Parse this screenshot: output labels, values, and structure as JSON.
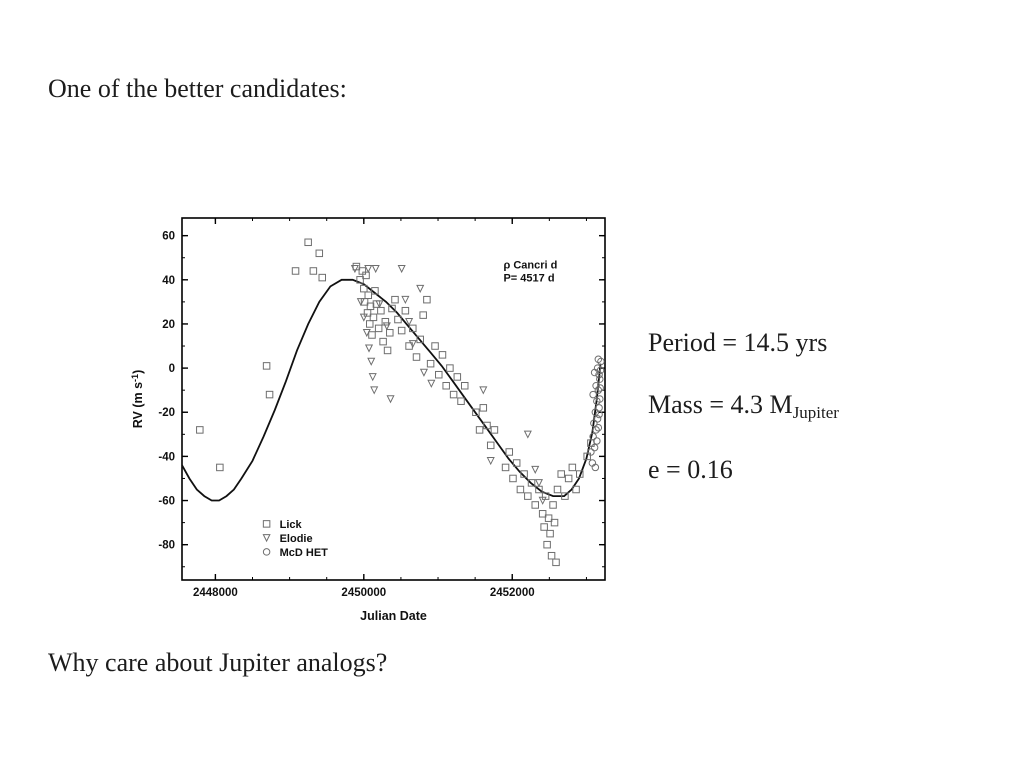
{
  "slide": {
    "title": "One of the better candidates:",
    "question": "Why care about Jupiter analogs?",
    "info": {
      "period": "Period = 14.5 yrs",
      "mass_main": "Mass = 4.3 M",
      "mass_sub": "Jupiter",
      "eccentricity": "e = 0.16"
    }
  },
  "chart_data": {
    "type": "scatter",
    "annotation": [
      "ρ  Cancri d",
      "P= 4517 d"
    ],
    "xlabel": "Julian Date",
    "ylabel_prefix": "RV (m s",
    "ylabel_sup": "-1",
    "ylabel_suffix": ")",
    "xlim": [
      2447550,
      2453250
    ],
    "ylim": [
      -96,
      68
    ],
    "xticks": [
      2448000,
      2450000,
      2452000
    ],
    "x_minor_step": 500,
    "yticks": [
      -80,
      -60,
      -40,
      -20,
      0,
      20,
      40,
      60
    ],
    "y_minor_step": 10,
    "colors": {
      "marker": "#6e6e6e",
      "curve": "#111111",
      "axis": "#000000",
      "text": "#111111"
    },
    "curve": [
      [
        2447550,
        -44
      ],
      [
        2447650,
        -50
      ],
      [
        2447750,
        -55
      ],
      [
        2447850,
        -58
      ],
      [
        2447950,
        -60
      ],
      [
        2448050,
        -60
      ],
      [
        2448150,
        -58
      ],
      [
        2448250,
        -55
      ],
      [
        2448350,
        -50
      ],
      [
        2448500,
        -42
      ],
      [
        2448650,
        -31
      ],
      [
        2448800,
        -19
      ],
      [
        2448950,
        -6
      ],
      [
        2449100,
        8
      ],
      [
        2449250,
        20
      ],
      [
        2449400,
        30
      ],
      [
        2449550,
        37
      ],
      [
        2449700,
        40
      ],
      [
        2449850,
        40
      ],
      [
        2450000,
        38
      ],
      [
        2450150,
        34
      ],
      [
        2450300,
        30
      ],
      [
        2450450,
        25
      ],
      [
        2450600,
        19
      ],
      [
        2450750,
        13
      ],
      [
        2450900,
        7
      ],
      [
        2451050,
        1
      ],
      [
        2451200,
        -6
      ],
      [
        2451350,
        -13
      ],
      [
        2451500,
        -20
      ],
      [
        2451650,
        -27
      ],
      [
        2451800,
        -34
      ],
      [
        2451950,
        -41
      ],
      [
        2452100,
        -47
      ],
      [
        2452250,
        -52
      ],
      [
        2452400,
        -56
      ],
      [
        2452550,
        -58
      ],
      [
        2452700,
        -58
      ],
      [
        2452800,
        -55
      ],
      [
        2452900,
        -50
      ],
      [
        2453000,
        -41
      ],
      [
        2453080,
        -29
      ],
      [
        2453140,
        -14
      ],
      [
        2453190,
        2
      ]
    ],
    "series": [
      {
        "name": "Lick",
        "marker": "square",
        "points": [
          [
            2447790,
            -28
          ],
          [
            2448060,
            -45
          ],
          [
            2448690,
            1
          ],
          [
            2448730,
            -12
          ],
          [
            2449080,
            44
          ],
          [
            2449250,
            57
          ],
          [
            2449320,
            44
          ],
          [
            2449400,
            52
          ],
          [
            2449440,
            41
          ],
          [
            2449900,
            46
          ],
          [
            2449950,
            40
          ],
          [
            2449980,
            44
          ],
          [
            2450000,
            36
          ],
          [
            2450010,
            30
          ],
          [
            2450030,
            42
          ],
          [
            2450050,
            25
          ],
          [
            2450060,
            33
          ],
          [
            2450080,
            20
          ],
          [
            2450090,
            28
          ],
          [
            2450110,
            15
          ],
          [
            2450130,
            23
          ],
          [
            2450150,
            35
          ],
          [
            2450170,
            29
          ],
          [
            2450200,
            18
          ],
          [
            2450230,
            26
          ],
          [
            2450260,
            12
          ],
          [
            2450290,
            21
          ],
          [
            2450320,
            8
          ],
          [
            2450350,
            16
          ],
          [
            2450380,
            27
          ],
          [
            2450420,
            31
          ],
          [
            2450460,
            22
          ],
          [
            2450510,
            17
          ],
          [
            2450560,
            26
          ],
          [
            2450610,
            10
          ],
          [
            2450660,
            18
          ],
          [
            2450710,
            5
          ],
          [
            2450760,
            13
          ],
          [
            2450800,
            24
          ],
          [
            2450850,
            31
          ],
          [
            2450900,
            2
          ],
          [
            2450960,
            10
          ],
          [
            2451010,
            -3
          ],
          [
            2451060,
            6
          ],
          [
            2451110,
            -8
          ],
          [
            2451160,
            0
          ],
          [
            2451210,
            -12
          ],
          [
            2451260,
            -4
          ],
          [
            2451310,
            -15
          ],
          [
            2451360,
            -8
          ],
          [
            2451510,
            -20
          ],
          [
            2451560,
            -28
          ],
          [
            2451610,
            -18
          ],
          [
            2451660,
            -26
          ],
          [
            2451710,
            -35
          ],
          [
            2451760,
            -28
          ],
          [
            2451910,
            -45
          ],
          [
            2451960,
            -38
          ],
          [
            2452010,
            -50
          ],
          [
            2452060,
            -43
          ],
          [
            2452110,
            -55
          ],
          [
            2452160,
            -48
          ],
          [
            2452210,
            -58
          ],
          [
            2452260,
            -52
          ],
          [
            2452310,
            -62
          ],
          [
            2452360,
            -55
          ],
          [
            2452410,
            -66
          ],
          [
            2452430,
            -72
          ],
          [
            2452450,
            -58
          ],
          [
            2452470,
            -80
          ],
          [
            2452490,
            -68
          ],
          [
            2452510,
            -75
          ],
          [
            2452530,
            -85
          ],
          [
            2452550,
            -62
          ],
          [
            2452570,
            -70
          ],
          [
            2452590,
            -88
          ],
          [
            2452610,
            -55
          ],
          [
            2452660,
            -48
          ],
          [
            2452710,
            -58
          ],
          [
            2452760,
            -50
          ],
          [
            2452810,
            -45
          ],
          [
            2452860,
            -55
          ],
          [
            2452910,
            -48
          ],
          [
            2453010,
            -40
          ],
          [
            2453060,
            -34
          ]
        ]
      },
      {
        "name": "Elodie",
        "marker": "triangle",
        "points": [
          [
            2449880,
            45
          ],
          [
            2450060,
            45
          ],
          [
            2450160,
            45
          ],
          [
            2449960,
            30
          ],
          [
            2450000,
            23
          ],
          [
            2450040,
            16
          ],
          [
            2450070,
            9
          ],
          [
            2450100,
            3
          ],
          [
            2450120,
            -4
          ],
          [
            2450140,
            -10
          ],
          [
            2450210,
            29
          ],
          [
            2450310,
            19
          ],
          [
            2450360,
            -14
          ],
          [
            2450510,
            45
          ],
          [
            2450560,
            31
          ],
          [
            2450610,
            21
          ],
          [
            2450660,
            11
          ],
          [
            2450760,
            36
          ],
          [
            2450810,
            -2
          ],
          [
            2450910,
            -7
          ],
          [
            2451610,
            -10
          ],
          [
            2451710,
            -42
          ],
          [
            2452210,
            -30
          ],
          [
            2452310,
            -46
          ],
          [
            2452360,
            -52
          ],
          [
            2452410,
            -60
          ]
        ]
      },
      {
        "name": "McD HET",
        "marker": "circle",
        "points": [
          [
            2453060,
            -38
          ],
          [
            2453080,
            -43
          ],
          [
            2453090,
            -31
          ],
          [
            2453100,
            -25
          ],
          [
            2453110,
            -36
          ],
          [
            2453120,
            -20
          ],
          [
            2453130,
            -28
          ],
          [
            2453140,
            -15
          ],
          [
            2453150,
            -23
          ],
          [
            2453160,
            -10
          ],
          [
            2453170,
            -18
          ],
          [
            2453180,
            -5
          ],
          [
            2453090,
            -12
          ],
          [
            2453110,
            -2
          ],
          [
            2453130,
            -8
          ],
          [
            2453150,
            0
          ],
          [
            2453160,
            4
          ],
          [
            2453170,
            -3
          ],
          [
            2453120,
            -45
          ],
          [
            2453140,
            -33
          ],
          [
            2453160,
            -27
          ],
          [
            2453170,
            -21
          ],
          [
            2453180,
            -14
          ],
          [
            2453185,
            -9
          ],
          [
            2453190,
            -1
          ],
          [
            2453195,
            3
          ]
        ]
      }
    ]
  }
}
